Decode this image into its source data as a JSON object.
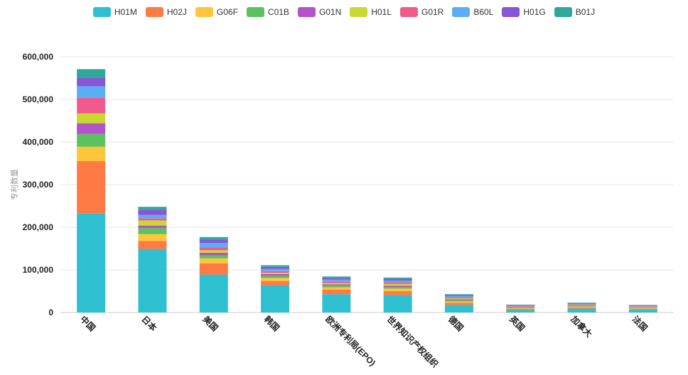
{
  "chart_data": {
    "type": "bar",
    "stacked": true,
    "title": "",
    "xlabel": "",
    "ylabel": "专利数量",
    "ylim": [
      0,
      600000
    ],
    "yticks": [
      0,
      100000,
      200000,
      300000,
      400000,
      500000,
      600000
    ],
    "ytick_labels": [
      "0",
      "100,000",
      "200,000",
      "300,000",
      "400,000",
      "500,000",
      "600,000"
    ],
    "grid": true,
    "legend_position": "top-center",
    "categories": [
      "中国",
      "日本",
      "美国",
      "韩国",
      "欧洲专利局(EPO)",
      "世界知识产权组织",
      "德国",
      "英国",
      "加拿大",
      "法国"
    ],
    "series": [
      {
        "name": "H01M",
        "color": "#2ebfd1",
        "values": [
          232000,
          149000,
          89000,
          64000,
          43000,
          41000,
          18000,
          6000,
          9000,
          7000
        ]
      },
      {
        "name": "H02J",
        "color": "#ff7a45",
        "values": [
          123000,
          19000,
          26000,
          10000,
          11000,
          9000,
          5000,
          2500,
          3000,
          2000
        ]
      },
      {
        "name": "G06F",
        "color": "#ffc53d",
        "values": [
          34000,
          16000,
          12000,
          7000,
          5000,
          6000,
          3000,
          1500,
          2000,
          1500
        ]
      },
      {
        "name": "C01B",
        "color": "#5cc25d",
        "values": [
          30000,
          14000,
          7000,
          5000,
          4000,
          4000,
          3000,
          1500,
          1500,
          1200
        ]
      },
      {
        "name": "G01N",
        "color": "#b452c9",
        "values": [
          25000,
          6000,
          6000,
          4000,
          3000,
          3000,
          2000,
          1000,
          1200,
          1000
        ]
      },
      {
        "name": "H01L",
        "color": "#c9d930",
        "values": [
          23000,
          12000,
          6000,
          3000,
          3000,
          4000,
          2000,
          1000,
          1000,
          900
        ]
      },
      {
        "name": "G01R",
        "color": "#f05b8c",
        "values": [
          37000,
          5000,
          7000,
          4000,
          4000,
          4000,
          2500,
          1200,
          1500,
          1000
        ]
      },
      {
        "name": "B60L",
        "color": "#5aaef5",
        "values": [
          27000,
          8000,
          10000,
          5000,
          4000,
          4000,
          3000,
          1500,
          1500,
          1200
        ]
      },
      {
        "name": "H01G",
        "color": "#8755d6",
        "values": [
          20000,
          12000,
          7000,
          5000,
          4000,
          4000,
          2500,
          1200,
          1300,
          1000
        ]
      },
      {
        "name": "B01J",
        "color": "#2fa79a",
        "values": [
          20000,
          7000,
          7000,
          4000,
          3500,
          3000,
          2000,
          1000,
          1200,
          900
        ]
      }
    ]
  }
}
